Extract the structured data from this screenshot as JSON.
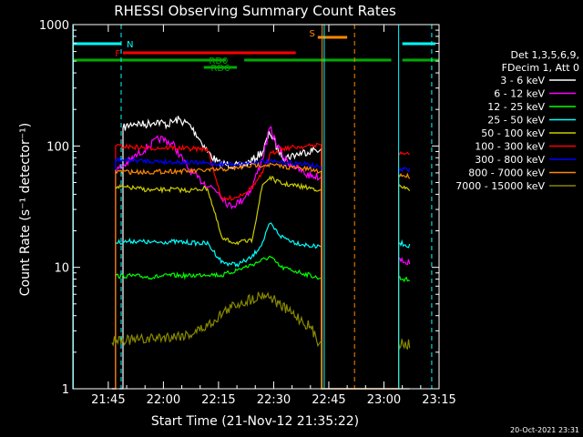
{
  "colors": {
    "background": "#000000",
    "axes": "#ffffff",
    "night": "#00ffff",
    "flag_red": "#ff0000",
    "flag_green": "#00aa00",
    "flag_orange": "#ff8800"
  },
  "chart_data": {
    "type": "line",
    "title": "RHESSI Observing Summary Count Rates",
    "xlabel": "Start Time (21-Nov-12 21:35:22)",
    "ylabel": "Count Rate (s⁻¹ detector⁻¹)",
    "yscale": "log",
    "ylim": [
      1,
      1000
    ],
    "xlim": [
      "21:35:22",
      "23:15"
    ],
    "x_ticks": [
      "21:45",
      "22:00",
      "22:15",
      "22:30",
      "22:45",
      "23:00",
      "23:15"
    ],
    "y_ticks": [
      "1",
      "10",
      "100",
      "1000"
    ],
    "footer": "20-Oct-2021 23:31",
    "legend": {
      "placement": "right",
      "header_line1": "Det 1,3,5,6,9,",
      "header_line2": "FDecim 1, Att 0"
    },
    "flags": [
      {
        "label": "N",
        "color": "#00ffff",
        "segments": [
          [
            "21:35:22",
            "21:48:30"
          ],
          [
            "23:05",
            "23:14"
          ]
        ]
      },
      {
        "label": "F",
        "color": "#ff0000",
        "segments": [
          [
            "21:49",
            "22:36"
          ]
        ]
      },
      {
        "label": "S",
        "color": "#ff8800",
        "segments": [
          [
            "22:42",
            "22:50"
          ]
        ]
      },
      {
        "label": "RD0",
        "color": "#00aa00",
        "segments": [
          [
            "21:35:22",
            "22:17"
          ],
          [
            "22:22",
            "23:02"
          ],
          [
            "23:05",
            "23:15"
          ]
        ]
      },
      {
        "label": "RD6",
        "color": "#00aa00",
        "segments": [
          [
            "22:11",
            "22:20"
          ]
        ]
      }
    ],
    "vertical_markers": [
      {
        "color": "#00ffff",
        "style": "solid",
        "time": "21:35:30"
      },
      {
        "color": "#00ffff",
        "style": "dashed",
        "time": "21:48:30"
      },
      {
        "color": "#00ffff",
        "style": "solid",
        "time": "22:43:45"
      },
      {
        "color": "#ff8800",
        "style": "solid",
        "time": "22:43:10"
      },
      {
        "color": "#ff8800",
        "style": "dashed",
        "time": "22:52"
      },
      {
        "color": "#00ffff",
        "style": "solid",
        "time": "23:04"
      },
      {
        "color": "#00ffff",
        "style": "dashed",
        "time": "23:13"
      }
    ],
    "series": [
      {
        "name": "3 - 6 keV",
        "color": "#ffffff",
        "points": [
          [
            "21:48",
            1
          ],
          [
            "21:49",
            140
          ],
          [
            "21:52",
            155
          ],
          [
            "21:55",
            150
          ],
          [
            "21:58",
            160
          ],
          [
            "22:01",
            150
          ],
          [
            "22:04",
            165
          ],
          [
            "22:07",
            150
          ],
          [
            "22:09",
            125
          ],
          [
            "22:12",
            90
          ],
          [
            "22:15",
            72
          ],
          [
            "22:18",
            70
          ],
          [
            "22:21",
            68
          ],
          [
            "22:24",
            75
          ],
          [
            "22:27",
            90
          ],
          [
            "22:29",
            130
          ],
          [
            "22:31",
            95
          ],
          [
            "22:33",
            80
          ],
          [
            "22:36",
            85
          ],
          [
            "22:39",
            90
          ],
          [
            "22:42",
            95
          ],
          [
            "22:43",
            1
          ],
          [
            "23:04",
            1
          ],
          [
            "23:07",
            1
          ]
        ]
      },
      {
        "name": "6 - 12 keV",
        "color": "#ff00ff",
        "points": [
          [
            "21:46",
            1
          ],
          [
            "21:47",
            62
          ],
          [
            "21:50",
            72
          ],
          [
            "21:53",
            85
          ],
          [
            "21:56",
            100
          ],
          [
            "21:59",
            115
          ],
          [
            "22:01",
            110
          ],
          [
            "22:03",
            100
          ],
          [
            "22:06",
            70
          ],
          [
            "22:09",
            55
          ],
          [
            "22:12",
            48
          ],
          [
            "22:15",
            42
          ],
          [
            "22:18",
            32
          ],
          [
            "22:21",
            35
          ],
          [
            "22:24",
            45
          ],
          [
            "22:27",
            80
          ],
          [
            "22:29",
            140
          ],
          [
            "22:31",
            100
          ],
          [
            "22:33",
            78
          ],
          [
            "22:36",
            66
          ],
          [
            "22:39",
            58
          ],
          [
            "22:42",
            56
          ],
          [
            "22:43",
            1
          ],
          [
            "23:04",
            12
          ],
          [
            "23:07",
            11
          ]
        ]
      },
      {
        "name": "12 - 25 keV",
        "color": "#00ff00",
        "points": [
          [
            "21:46",
            1
          ],
          [
            "21:47",
            8.5
          ],
          [
            "21:52",
            8.5
          ],
          [
            "21:57",
            8.3
          ],
          [
            "22:02",
            8.6
          ],
          [
            "22:07",
            8.5
          ],
          [
            "22:12",
            8.8
          ],
          [
            "22:16",
            8.6
          ],
          [
            "22:20",
            9.5
          ],
          [
            "22:24",
            10.5
          ],
          [
            "22:27",
            11.5
          ],
          [
            "22:29",
            12.2
          ],
          [
            "22:32",
            10
          ],
          [
            "22:36",
            9.3
          ],
          [
            "22:40",
            8.6
          ],
          [
            "22:42",
            8.2
          ],
          [
            "22:43",
            1
          ],
          [
            "23:04",
            8.2
          ],
          [
            "23:07",
            7.8
          ]
        ]
      },
      {
        "name": "25 - 50 keV",
        "color": "#00ffff",
        "points": [
          [
            "21:46",
            1
          ],
          [
            "21:47",
            16
          ],
          [
            "21:52",
            16.5
          ],
          [
            "21:57",
            16
          ],
          [
            "22:02",
            16.3
          ],
          [
            "22:07",
            16
          ],
          [
            "22:12",
            15.7
          ],
          [
            "22:16",
            11
          ],
          [
            "22:20",
            10.5
          ],
          [
            "22:24",
            12
          ],
          [
            "22:27",
            16
          ],
          [
            "22:29",
            23
          ],
          [
            "22:32",
            18
          ],
          [
            "22:36",
            16
          ],
          [
            "22:40",
            15
          ],
          [
            "22:42",
            14.7
          ],
          [
            "22:43",
            1
          ],
          [
            "23:04",
            16
          ],
          [
            "23:07",
            15
          ]
        ]
      },
      {
        "name": "50 - 100 keV",
        "color": "#cccc00",
        "points": [
          [
            "21:46",
            1
          ],
          [
            "21:47",
            46
          ],
          [
            "21:52",
            45
          ],
          [
            "21:57",
            43
          ],
          [
            "22:02",
            44
          ],
          [
            "22:07",
            43
          ],
          [
            "22:12",
            45
          ],
          [
            "22:16",
            17
          ],
          [
            "22:20",
            16
          ],
          [
            "22:24",
            16.5
          ],
          [
            "22:27",
            48
          ],
          [
            "22:29",
            55
          ],
          [
            "22:32",
            49
          ],
          [
            "22:36",
            47
          ],
          [
            "22:40",
            45
          ],
          [
            "22:42",
            44
          ],
          [
            "22:43",
            1
          ],
          [
            "23:04",
            46
          ],
          [
            "23:07",
            44
          ]
        ]
      },
      {
        "name": "100 - 300 keV",
        "color": "#ff0000",
        "points": [
          [
            "21:46",
            1
          ],
          [
            "21:47",
            100
          ],
          [
            "21:52",
            98
          ],
          [
            "21:57",
            96
          ],
          [
            "22:02",
            97
          ],
          [
            "22:07",
            95
          ],
          [
            "22:12",
            94
          ],
          [
            "22:16",
            36
          ],
          [
            "22:20",
            38
          ],
          [
            "22:24",
            45
          ],
          [
            "22:27",
            60
          ],
          [
            "22:29",
            85
          ],
          [
            "22:32",
            95
          ],
          [
            "22:36",
            98
          ],
          [
            "22:40",
            100
          ],
          [
            "22:42",
            102
          ],
          [
            "22:43",
            1
          ],
          [
            "23:04",
            88
          ],
          [
            "23:07",
            85
          ]
        ]
      },
      {
        "name": "300 - 800 keV",
        "color": "#0000ff",
        "points": [
          [
            "21:46",
            1
          ],
          [
            "21:47",
            77
          ],
          [
            "21:52",
            76
          ],
          [
            "21:57",
            75
          ],
          [
            "22:02",
            74
          ],
          [
            "22:07",
            73
          ],
          [
            "22:12",
            72
          ],
          [
            "22:16",
            71
          ],
          [
            "22:20",
            71
          ],
          [
            "22:24",
            73
          ],
          [
            "22:27",
            74
          ],
          [
            "22:29",
            74
          ],
          [
            "22:32",
            73
          ],
          [
            "22:36",
            72
          ],
          [
            "22:40",
            70
          ],
          [
            "22:42",
            67
          ],
          [
            "22:43",
            1
          ],
          [
            "23:04",
            65
          ],
          [
            "23:07",
            63
          ]
        ]
      },
      {
        "name": "800 - 7000 keV",
        "color": "#ff8800",
        "points": [
          [
            "21:46",
            1
          ],
          [
            "21:47",
            62
          ],
          [
            "21:52",
            61
          ],
          [
            "21:57",
            61
          ],
          [
            "22:02",
            62
          ],
          [
            "22:07",
            62
          ],
          [
            "22:12",
            63
          ],
          [
            "22:16",
            64
          ],
          [
            "22:20",
            66
          ],
          [
            "22:24",
            69
          ],
          [
            "22:27",
            70
          ],
          [
            "22:29",
            70
          ],
          [
            "22:32",
            68
          ],
          [
            "22:36",
            66
          ],
          [
            "22:40",
            64
          ],
          [
            "22:42",
            62
          ],
          [
            "22:43",
            1
          ],
          [
            "23:04",
            58
          ],
          [
            "23:07",
            56
          ]
        ]
      },
      {
        "name": "7000 - 15000 keV",
        "color": "#888800",
        "points": [
          [
            "21:46",
            2.4
          ],
          [
            "21:47",
            2.6
          ],
          [
            "21:52",
            2.5
          ],
          [
            "21:57",
            2.6
          ],
          [
            "22:02",
            2.7
          ],
          [
            "22:07",
            2.8
          ],
          [
            "22:12",
            3.3
          ],
          [
            "22:16",
            4.2
          ],
          [
            "22:20",
            5
          ],
          [
            "22:24",
            5.5
          ],
          [
            "22:27",
            6
          ],
          [
            "22:29",
            5.8
          ],
          [
            "22:32",
            4.8
          ],
          [
            "22:36",
            4
          ],
          [
            "22:40",
            3.2
          ],
          [
            "22:42",
            2.5
          ],
          [
            "22:43",
            1
          ],
          [
            "23:04",
            2.4
          ],
          [
            "23:07",
            2.3
          ]
        ]
      }
    ]
  }
}
